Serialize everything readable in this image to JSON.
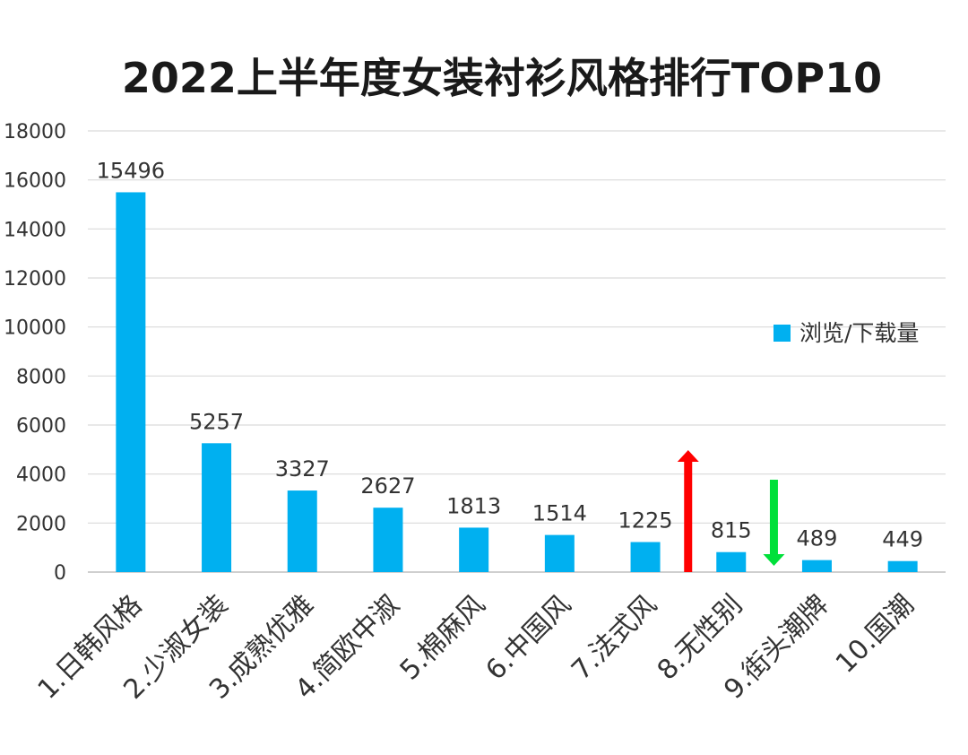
{
  "chart_data": {
    "type": "bar",
    "title": "2022上半年度女装衬衫风格排行TOP10",
    "xlabel": "",
    "ylabel": "",
    "categories": [
      "1.日韩风格",
      "2.少淑女装",
      "3.成熟优雅",
      "4.简欧中淑",
      "5.棉麻风",
      "6.中国风",
      "7.法式风",
      "8.无性别",
      "9.街头潮牌",
      "10.国潮"
    ],
    "series": [
      {
        "name": "浏览/下载量",
        "values": [
          15496,
          5257,
          3327,
          2627,
          1813,
          1514,
          1225,
          815,
          489,
          449
        ]
      }
    ],
    "data_labels": [
      "15496",
      "5257",
      "3327",
      "2627",
      "1813",
      "1514",
      "1225",
      "815",
      "489",
      "449"
    ],
    "ylim": [
      0,
      18000
    ],
    "yticks": [
      0,
      2000,
      4000,
      6000,
      8000,
      10000,
      12000,
      14000,
      16000,
      18000
    ],
    "grid": true,
    "legend_position": "right",
    "bar_color": "#00b0f0",
    "annotations": [
      {
        "type": "arrow-up",
        "category": "8.无性别",
        "color": "#ff0000"
      },
      {
        "type": "arrow-down",
        "category": "9.街头潮牌",
        "color": "#00e03a"
      }
    ]
  }
}
